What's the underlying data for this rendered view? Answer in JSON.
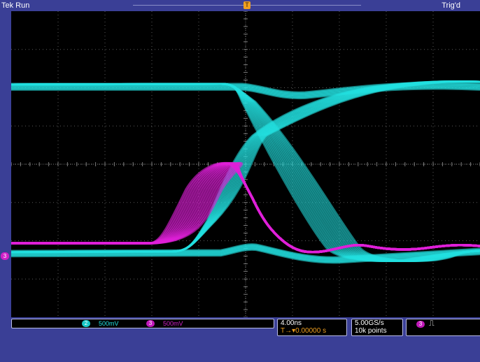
{
  "header": {
    "run_status": "Tek Run",
    "trigger_status": "Trig'd",
    "record_marker": "T",
    "trigger_position_marker": "T"
  },
  "colors": {
    "channel2": "#22e0e0",
    "channel3": "#e020d8",
    "trigger_marker": "#f0a020",
    "frame": "#3a3f96",
    "grid": "#5a5a5a"
  },
  "grid": {
    "divisions_x": 10,
    "divisions_y": 8
  },
  "channels": {
    "ch2": {
      "number": "2",
      "scale": "500mV",
      "color": "#22e0e0"
    },
    "ch3": {
      "number": "3",
      "scale": "500mV",
      "color": "#e020d8"
    }
  },
  "timebase": {
    "scale": "4.00ns",
    "trigger_icon": "T→▾",
    "delay": "0.00000 s"
  },
  "acquisition": {
    "sample_rate": "5.00GS/s",
    "record_length": "10k points"
  },
  "trigger": {
    "source": "3",
    "type_icon": "rising-edge-pulse-icon",
    "type_glyph": "⎍"
  },
  "ground_marker": {
    "channel": "3"
  }
}
